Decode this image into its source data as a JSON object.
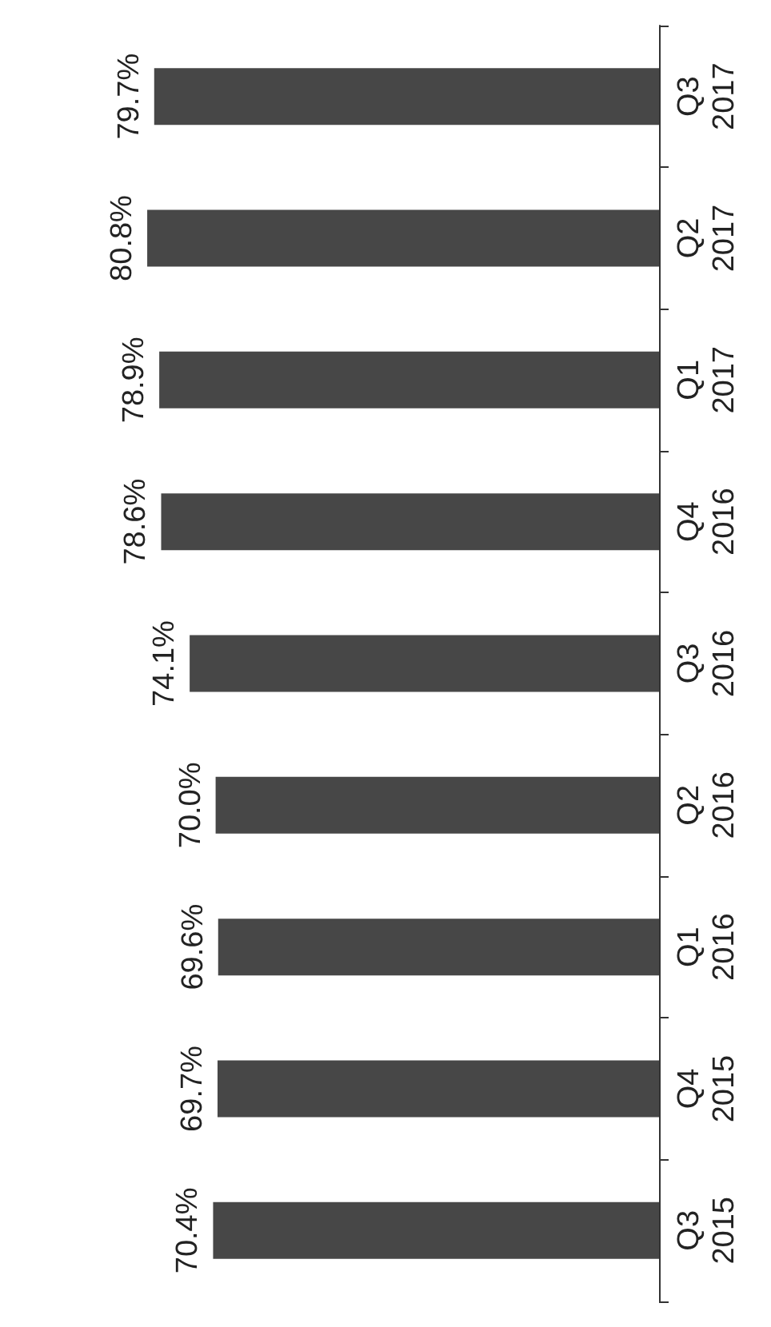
{
  "chart_data": {
    "type": "bar",
    "orientation": "horizontal",
    "categories": [
      "Q3\n2017",
      "Q2\n2017",
      "Q1\n2017",
      "Q4\n2016",
      "Q3\n2016",
      "Q2\n2016",
      "Q1\n2016",
      "Q4\n2015",
      "Q3\n2015"
    ],
    "values": [
      79.7,
      80.8,
      78.9,
      78.6,
      74.1,
      70.0,
      69.6,
      69.7,
      70.4
    ],
    "value_labels": [
      "79.7%",
      "80.8%",
      "78.9%",
      "78.6%",
      "74.1%",
      "70.0%",
      "69.6%",
      "69.7%",
      "70.4%"
    ],
    "color": "#474747",
    "tick_labels": "y"
  }
}
